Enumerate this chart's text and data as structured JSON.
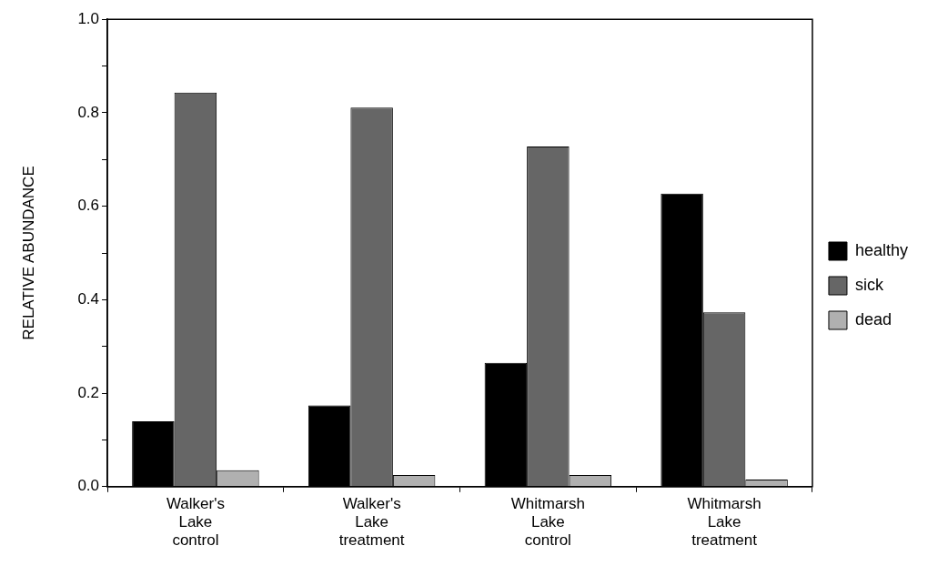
{
  "chart_data": {
    "type": "bar",
    "ylabel": "RELATIVE ABUNDANCE",
    "categories": [
      "Walker's Lake control",
      "Walker's Lake treatment",
      "Whitmarsh Lake control",
      "Whitmarsh Lake treatment"
    ],
    "series": [
      {
        "name": "healthy",
        "color": "#000000",
        "values": [
          0.14,
          0.174,
          0.265,
          0.627
        ]
      },
      {
        "name": "sick",
        "color": "#666666",
        "values": [
          0.843,
          0.811,
          0.728,
          0.373
        ]
      },
      {
        "name": "dead",
        "color": "#b0b0b0",
        "values": [
          0.035,
          0.025,
          0.025,
          0.015
        ]
      }
    ],
    "ylim": [
      0,
      1
    ],
    "yticks": [
      {
        "value": 0,
        "label": "0.0"
      },
      {
        "value": 0.1,
        "label": null
      },
      0.2,
      {
        "value": 0.3,
        "label": null
      },
      0.4,
      {
        "value": 0.5,
        "label": null
      },
      0.6,
      {
        "value": 0.7,
        "label": null
      },
      0.8,
      {
        "value": 0.9,
        "label": null
      },
      {
        "value": 1,
        "label": "1.0"
      }
    ],
    "grid": false,
    "legend": "right"
  }
}
